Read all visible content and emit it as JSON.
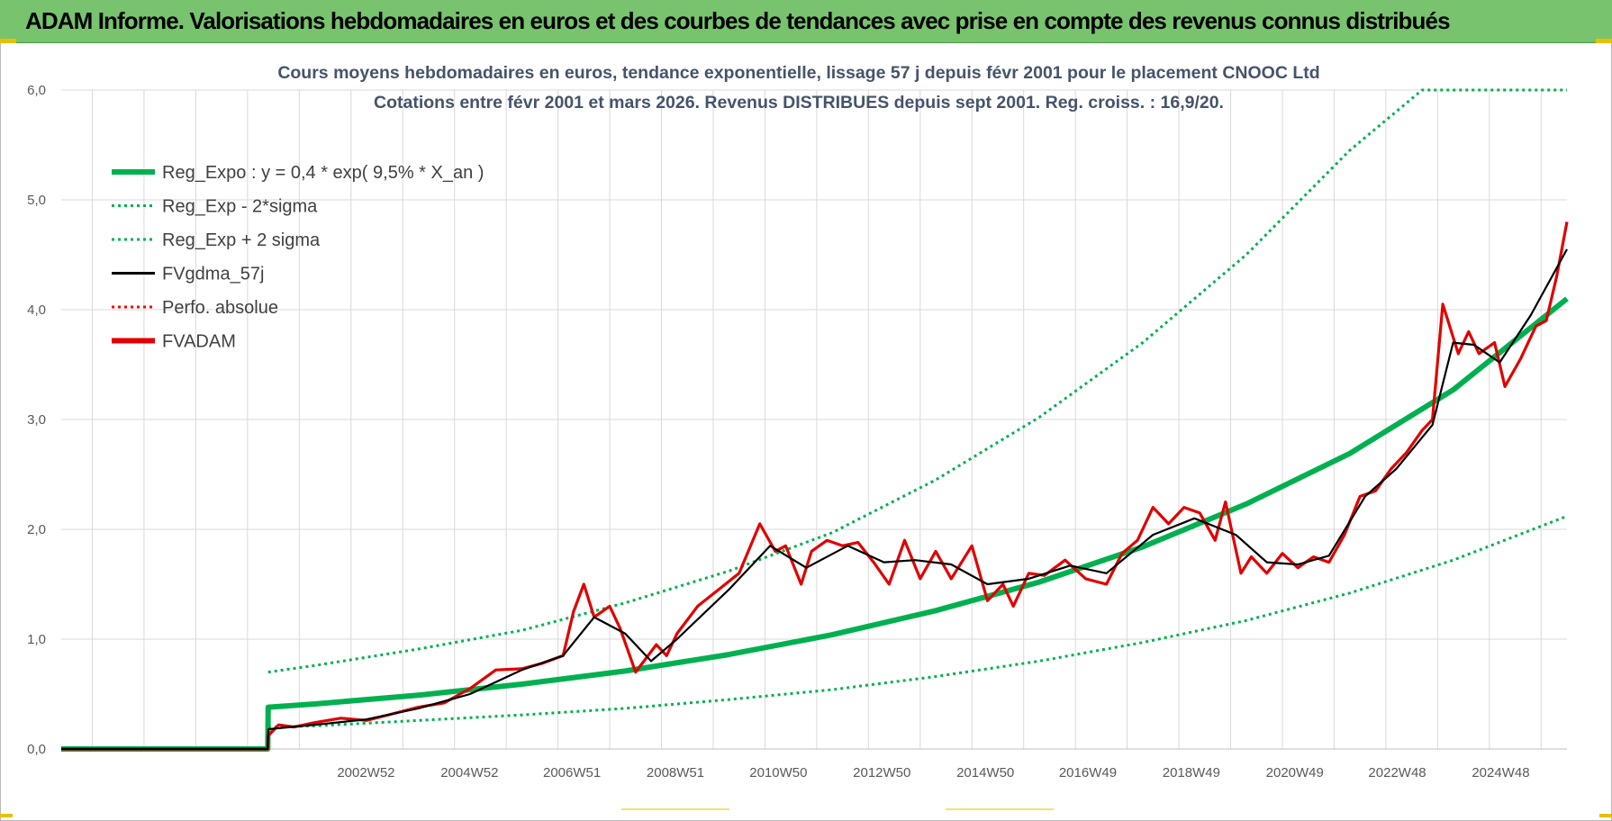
{
  "header": {
    "title": "ADAM Informe. Valorisations hebdomadaires en euros et des courbes de tendances avec prise en compte des revenus connus distribués"
  },
  "colors": {
    "banner": "#77c36e",
    "trend": "#00b050",
    "smooth": "#000000",
    "adam": "#e00000",
    "perfo": "#ff0000",
    "grid": "#d9d9d9"
  },
  "chart_data": {
    "type": "line",
    "title": [
      "Cours moyens hebdomadaires en euros, tendance exponentielle, lissage 57 j depuis févr 2001 pour le placement CNOOC Ltd",
      "Cotations entre févr 2001 et mars 2026. Revenus DISTRIBUES depuis sept 2001. Reg. croiss. : 16,9/20."
    ],
    "xlabel": "",
    "ylabel": "",
    "ylim": [
      0,
      6
    ],
    "yticks": [
      "0,0",
      "1,0",
      "2,0",
      "3,0",
      "4,0",
      "5,0",
      "6,0"
    ],
    "x_range_years": [
      1997.1,
      2026.2
    ],
    "xticks": [
      {
        "label": "2002W52",
        "year": 2002.99
      },
      {
        "label": "2004W52",
        "year": 2004.99
      },
      {
        "label": "2006W51",
        "year": 2006.97
      },
      {
        "label": "2008W51",
        "year": 2008.97
      },
      {
        "label": "2010W50",
        "year": 2010.96
      },
      {
        "label": "2012W50",
        "year": 2012.96
      },
      {
        "label": "2014W50",
        "year": 2014.96
      },
      {
        "label": "2016W49",
        "year": 2016.94
      },
      {
        "label": "2018W49",
        "year": 2018.94
      },
      {
        "label": "2020W49",
        "year": 2020.94
      },
      {
        "label": "2022W48",
        "year": 2022.92
      },
      {
        "label": "2024W48",
        "year": 2024.92
      }
    ],
    "start_year": 2001.1,
    "legend_position": "top-left",
    "series": [
      {
        "name": "Reg_Expo : y = 0,4 * exp( 9,5% *  X_an )",
        "style": "thick-solid",
        "color": "#00b050",
        "x": [
          1997.1,
          2001.09,
          2001.1,
          2002,
          2004,
          2006,
          2008,
          2010,
          2012,
          2014,
          2016,
          2018,
          2020,
          2022,
          2024,
          2026.2
        ],
        "y": [
          0,
          0,
          0.38,
          0.41,
          0.49,
          0.59,
          0.71,
          0.86,
          1.04,
          1.26,
          1.52,
          1.84,
          2.23,
          2.69,
          3.27,
          4.1
        ]
      },
      {
        "name": "Reg_Exp - 2*sigma",
        "style": "dotted",
        "color": "#00b050",
        "x": [
          2001.1,
          2002,
          2004,
          2006,
          2008,
          2010,
          2012,
          2014,
          2016,
          2018,
          2020,
          2022,
          2024,
          2026.2
        ],
        "y": [
          0.2,
          0.21,
          0.26,
          0.31,
          0.37,
          0.45,
          0.54,
          0.66,
          0.8,
          0.97,
          1.17,
          1.42,
          1.72,
          2.12
        ]
      },
      {
        "name": "Reg_Exp + 2 sigma",
        "style": "dotted",
        "color": "#00b050",
        "x": [
          2001.1,
          2002,
          2004,
          2006,
          2008,
          2010,
          2012,
          2014,
          2016,
          2018,
          2020,
          2022,
          2023.4,
          2024,
          2026.2
        ],
        "y": [
          0.7,
          0.76,
          0.91,
          1.08,
          1.33,
          1.62,
          1.97,
          2.45,
          3.02,
          3.7,
          4.5,
          5.45,
          6.0,
          6.0,
          6.0
        ]
      },
      {
        "name": "FVgdma_57j",
        "style": "solid",
        "color": "#000000",
        "x": [
          1997.1,
          2001.09,
          2001.1,
          2002,
          2003,
          2004,
          2005,
          2006,
          2006.8,
          2007.4,
          2008,
          2008.5,
          2009,
          2010,
          2010.8,
          2011.5,
          2012.3,
          2013,
          2013.6,
          2014.3,
          2015,
          2015.8,
          2016.6,
          2017.3,
          2018.2,
          2019,
          2019.8,
          2020.4,
          2021,
          2021.6,
          2022.3,
          2022.9,
          2023.6,
          2024,
          2024.4,
          2024.9,
          2025.5,
          2026.2
        ],
        "y": [
          0,
          0,
          0.18,
          0.22,
          0.27,
          0.37,
          0.5,
          0.72,
          0.85,
          1.2,
          1.05,
          0.8,
          1.0,
          1.45,
          1.85,
          1.65,
          1.85,
          1.7,
          1.72,
          1.68,
          1.5,
          1.55,
          1.67,
          1.6,
          1.95,
          2.1,
          1.95,
          1.7,
          1.68,
          1.76,
          2.3,
          2.55,
          2.95,
          3.7,
          3.68,
          3.52,
          3.95,
          4.55
        ]
      },
      {
        "name": "Perfo. absolue",
        "style": "dotted",
        "color": "#ff0000",
        "x": [],
        "y": []
      },
      {
        "name": "FVADAM",
        "style": "thick-solid",
        "color": "#e00000",
        "x": [
          1997.1,
          2001.09,
          2001.1,
          2001.3,
          2001.6,
          2002,
          2002.5,
          2003,
          2003.5,
          2004,
          2004.5,
          2005,
          2005.5,
          2006,
          2006.4,
          2006.8,
          2007,
          2007.2,
          2007.4,
          2007.7,
          2007.9,
          2008.2,
          2008.6,
          2008.8,
          2009,
          2009.4,
          2009.8,
          2010.2,
          2010.6,
          2010.9,
          2011.1,
          2011.4,
          2011.6,
          2011.9,
          2012.2,
          2012.5,
          2012.8,
          2013.1,
          2013.4,
          2013.7,
          2014,
          2014.3,
          2014.7,
          2015,
          2015.3,
          2015.5,
          2015.8,
          2016.1,
          2016.5,
          2016.9,
          2017.3,
          2017.6,
          2017.9,
          2018.2,
          2018.5,
          2018.8,
          2019.1,
          2019.4,
          2019.6,
          2019.9,
          2020.1,
          2020.4,
          2020.7,
          2021,
          2021.3,
          2021.6,
          2021.9,
          2022.2,
          2022.5,
          2022.8,
          2023.1,
          2023.4,
          2023.6,
          2023.8,
          2024.1,
          2024.3,
          2024.5,
          2024.8,
          2025,
          2025.3,
          2025.6,
          2025.8,
          2026,
          2026.2
        ],
        "y": [
          0,
          0,
          0.12,
          0.22,
          0.2,
          0.24,
          0.28,
          0.26,
          0.32,
          0.38,
          0.42,
          0.55,
          0.72,
          0.73,
          0.78,
          0.85,
          1.25,
          1.5,
          1.2,
          1.3,
          1.1,
          0.7,
          0.95,
          0.85,
          1.05,
          1.3,
          1.45,
          1.6,
          2.05,
          1.8,
          1.85,
          1.5,
          1.8,
          1.9,
          1.85,
          1.88,
          1.7,
          1.5,
          1.9,
          1.55,
          1.8,
          1.55,
          1.85,
          1.35,
          1.5,
          1.3,
          1.6,
          1.58,
          1.72,
          1.55,
          1.5,
          1.78,
          1.9,
          2.2,
          2.05,
          2.2,
          2.15,
          1.9,
          2.25,
          1.6,
          1.75,
          1.6,
          1.78,
          1.65,
          1.75,
          1.7,
          1.95,
          2.3,
          2.35,
          2.55,
          2.7,
          2.9,
          3.0,
          4.05,
          3.6,
          3.8,
          3.6,
          3.7,
          3.3,
          3.55,
          3.85,
          3.9,
          4.3,
          4.8
        ]
      }
    ]
  }
}
